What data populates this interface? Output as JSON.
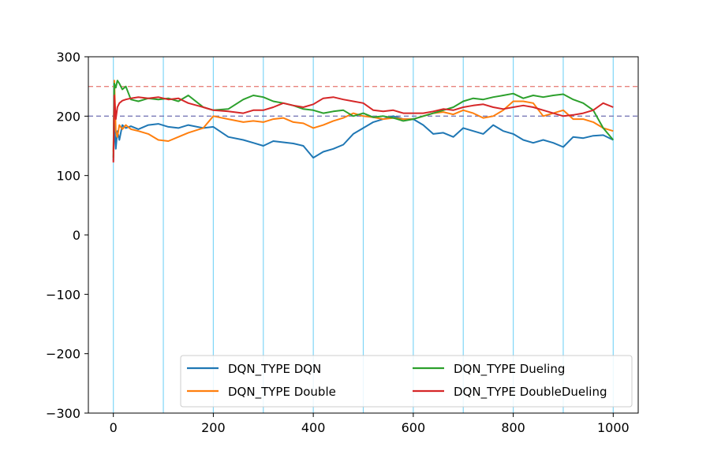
{
  "chart_data": {
    "type": "line",
    "title": "",
    "xlabel": "",
    "ylabel": "",
    "xlim": [
      -50,
      1050
    ],
    "ylim": [
      -300,
      300
    ],
    "xticks": [
      0,
      200,
      400,
      600,
      800,
      1000
    ],
    "xtick_labels": [
      "0",
      "200",
      "400",
      "600",
      "800",
      "1000"
    ],
    "yticks": [
      -300,
      -200,
      -100,
      0,
      100,
      200,
      300
    ],
    "ytick_labels": [
      "−300",
      "−200",
      "−100",
      "0",
      "100",
      "200",
      "300"
    ],
    "vertical_lines": {
      "x": [
        0,
        100,
        200,
        300,
        400,
        500,
        600,
        700,
        800,
        900,
        1000
      ],
      "color": "#7fd6f7"
    },
    "horizontal_lines": [
      {
        "y": 250,
        "color": "#e8837e",
        "style": "dashed"
      },
      {
        "y": 200,
        "color": "#7b7bb8",
        "style": "dashed"
      }
    ],
    "legend": {
      "location": "lower-right",
      "columns": 2
    },
    "series": [
      {
        "name": "DQN_TYPE DQN",
        "color": "#1f77b4",
        "x": [
          0,
          2,
          5,
          8,
          12,
          18,
          25,
          35,
          50,
          70,
          90,
          110,
          130,
          150,
          180,
          200,
          230,
          260,
          280,
          300,
          320,
          340,
          360,
          380,
          400,
          420,
          440,
          460,
          480,
          500,
          520,
          540,
          560,
          580,
          600,
          620,
          640,
          660,
          680,
          700,
          720,
          740,
          760,
          780,
          800,
          820,
          840,
          860,
          880,
          900,
          920,
          940,
          960,
          980,
          1000
        ],
        "y": [
          125,
          190,
          145,
          175,
          160,
          185,
          180,
          183,
          178,
          185,
          187,
          182,
          180,
          185,
          180,
          182,
          165,
          160,
          155,
          150,
          158,
          156,
          154,
          150,
          130,
          140,
          145,
          152,
          170,
          180,
          190,
          195,
          200,
          195,
          195,
          185,
          170,
          172,
          165,
          180,
          175,
          170,
          185,
          175,
          170,
          160,
          155,
          160,
          155,
          148,
          165,
          163,
          167,
          168,
          160
        ]
      },
      {
        "name": "DQN_TYPE Double",
        "color": "#ff7f0e",
        "x": [
          0,
          2,
          5,
          8,
          12,
          18,
          25,
          35,
          50,
          70,
          90,
          110,
          130,
          150,
          180,
          200,
          230,
          260,
          280,
          300,
          320,
          340,
          360,
          380,
          400,
          420,
          440,
          460,
          480,
          500,
          520,
          540,
          560,
          580,
          600,
          620,
          640,
          660,
          680,
          700,
          720,
          740,
          760,
          780,
          800,
          820,
          840,
          860,
          880,
          900,
          920,
          940,
          960,
          980,
          1000
        ],
        "y": [
          140,
          260,
          175,
          165,
          185,
          178,
          185,
          178,
          175,
          170,
          160,
          158,
          165,
          172,
          180,
          200,
          195,
          190,
          192,
          190,
          195,
          197,
          190,
          188,
          180,
          185,
          192,
          197,
          205,
          200,
          198,
          195,
          197,
          195,
          195,
          200,
          205,
          207,
          203,
          210,
          205,
          197,
          200,
          210,
          225,
          225,
          222,
          200,
          205,
          210,
          195,
          195,
          190,
          180,
          175
        ]
      },
      {
        "name": "DQN_TYPE Dueling",
        "color": "#2ca02c",
        "x": [
          0,
          2,
          5,
          8,
          12,
          18,
          25,
          35,
          50,
          70,
          90,
          110,
          130,
          150,
          180,
          200,
          230,
          260,
          280,
          300,
          320,
          340,
          360,
          380,
          400,
          420,
          440,
          460,
          480,
          500,
          520,
          540,
          560,
          580,
          600,
          620,
          640,
          660,
          680,
          700,
          720,
          740,
          760,
          780,
          800,
          820,
          840,
          860,
          880,
          900,
          920,
          940,
          960,
          980,
          1000
        ],
        "y": [
          130,
          255,
          248,
          260,
          255,
          245,
          250,
          228,
          225,
          230,
          228,
          230,
          225,
          235,
          215,
          210,
          212,
          228,
          235,
          232,
          225,
          222,
          218,
          212,
          210,
          205,
          208,
          210,
          200,
          205,
          198,
          200,
          197,
          192,
          195,
          200,
          205,
          210,
          215,
          225,
          230,
          228,
          232,
          235,
          238,
          230,
          235,
          232,
          235,
          237,
          228,
          222,
          210,
          180,
          160
        ]
      },
      {
        "name": "DQN_TYPE DoubleDueling",
        "color": "#d62728",
        "x": [
          0,
          2,
          5,
          8,
          12,
          18,
          25,
          35,
          50,
          70,
          90,
          110,
          130,
          150,
          180,
          200,
          230,
          260,
          280,
          300,
          320,
          340,
          360,
          380,
          400,
          420,
          440,
          460,
          480,
          500,
          520,
          540,
          560,
          580,
          600,
          620,
          640,
          660,
          680,
          700,
          720,
          740,
          760,
          780,
          800,
          820,
          840,
          860,
          880,
          900,
          920,
          940,
          960,
          980,
          1000
        ],
        "y": [
          122,
          235,
          195,
          215,
          222,
          226,
          228,
          230,
          232,
          230,
          232,
          228,
          230,
          222,
          215,
          210,
          208,
          205,
          210,
          210,
          215,
          222,
          218,
          215,
          220,
          230,
          232,
          228,
          225,
          222,
          210,
          208,
          210,
          205,
          205,
          205,
          208,
          212,
          210,
          215,
          218,
          220,
          215,
          212,
          215,
          218,
          215,
          210,
          205,
          200,
          202,
          205,
          210,
          222,
          215
        ]
      }
    ]
  }
}
